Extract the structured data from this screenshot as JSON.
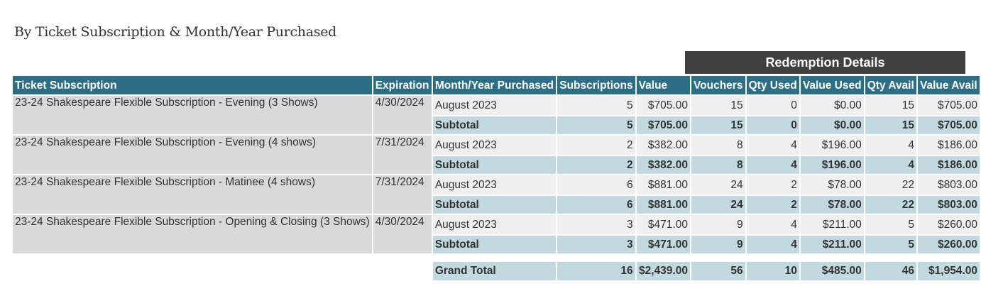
{
  "report": {
    "title": "By Ticket Subscription & Month/Year Purchased",
    "redemption_header": "Redemption Details",
    "columns": [
      "Ticket Subscription",
      "Expiration",
      "Month/Year Purchased",
      "Subscriptions",
      "Value",
      "Vouchers",
      "Qty Used",
      "Value Used",
      "Qty Avail",
      "Value Avail"
    ],
    "rows": [
      {
        "name": "23-24 Shakespeare Flexible Subscription - Evening (3 Shows)",
        "expiration": "4/30/2024",
        "detail": {
          "month": "August 2023",
          "subscriptions": "5",
          "value": "$705.00",
          "vouchers": "15",
          "qty_used": "0",
          "value_used": "$0.00",
          "qty_avail": "15",
          "value_avail": "$705.00"
        },
        "subtotal": {
          "label": "Subtotal",
          "subscriptions": "5",
          "value": "$705.00",
          "vouchers": "15",
          "qty_used": "0",
          "value_used": "$0.00",
          "qty_avail": "15",
          "value_avail": "$705.00"
        }
      },
      {
        "name": "23-24 Shakespeare Flexible Subscription - Evening (4 shows)",
        "expiration": "7/31/2024",
        "detail": {
          "month": "August 2023",
          "subscriptions": "2",
          "value": "$382.00",
          "vouchers": "8",
          "qty_used": "4",
          "value_used": "$196.00",
          "qty_avail": "4",
          "value_avail": "$186.00"
        },
        "subtotal": {
          "label": "Subtotal",
          "subscriptions": "2",
          "value": "$382.00",
          "vouchers": "8",
          "qty_used": "4",
          "value_used": "$196.00",
          "qty_avail": "4",
          "value_avail": "$186.00"
        }
      },
      {
        "name": "23-24 Shakespeare Flexible Subscription - Matinee (4 shows)",
        "expiration": "7/31/2024",
        "detail": {
          "month": "August 2023",
          "subscriptions": "6",
          "value": "$881.00",
          "vouchers": "24",
          "qty_used": "2",
          "value_used": "$78.00",
          "qty_avail": "22",
          "value_avail": "$803.00"
        },
        "subtotal": {
          "label": "Subtotal",
          "subscriptions": "6",
          "value": "$881.00",
          "vouchers": "24",
          "qty_used": "2",
          "value_used": "$78.00",
          "qty_avail": "22",
          "value_avail": "$803.00"
        }
      },
      {
        "name": "23-24 Shakespeare Flexible Subscription - Opening & Closing (3 Shows)",
        "expiration": "4/30/2024",
        "detail": {
          "month": "August 2023",
          "subscriptions": "3",
          "value": "$471.00",
          "vouchers": "9",
          "qty_used": "4",
          "value_used": "$211.00",
          "qty_avail": "5",
          "value_avail": "$260.00"
        },
        "subtotal": {
          "label": "Subtotal",
          "subscriptions": "3",
          "value": "$471.00",
          "vouchers": "9",
          "qty_used": "4",
          "value_used": "$211.00",
          "qty_avail": "5",
          "value_avail": "$260.00"
        }
      }
    ],
    "grand_total": {
      "label": "Grand Total",
      "subscriptions": "16",
      "value": "$2,439.00",
      "vouchers": "56",
      "qty_used": "10",
      "value_used": "$485.00",
      "qty_avail": "46",
      "value_avail": "$1,954.00"
    }
  }
}
